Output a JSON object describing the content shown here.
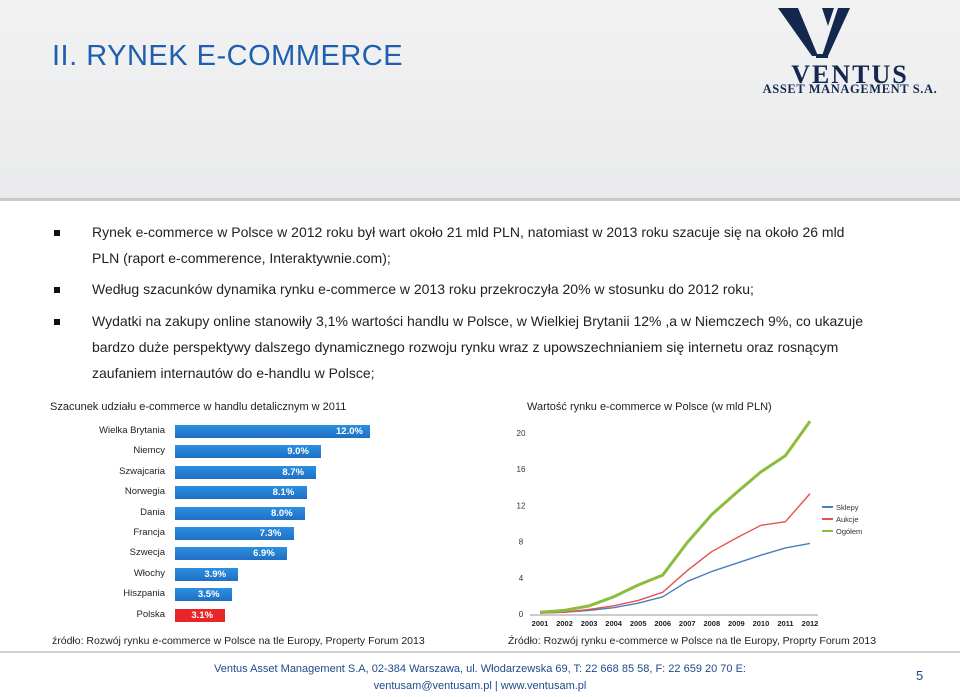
{
  "header": {
    "title": "II. RYNEK E-COMMERCE"
  },
  "logo": {
    "name": "VENTUS",
    "subtitle": "ASSET MANAGEMENT S.A."
  },
  "bullets": [
    {
      "lines": [
        "Rynek e-commerce w  Polsce w 2012 roku był wart około 21 mld PLN,  natomiast w 2013 roku szacuje się na około 26 mld",
        "PLN (raport e-commerence, Interaktywnie.com);"
      ]
    },
    {
      "lines": [
        "Według szacunków dynamika rynku  e-commerce w 2013 roku przekroczyła 20% w stosunku do 2012 roku;"
      ]
    },
    {
      "lines": [
        "Wydatki na zakupy online stanowiły 3,1% wartości handlu w Polsce, w Wielkiej Brytanii 12% ,a w Niemczech 9%, co ukazuje",
        "bardzo duże perspektywy dalszego dynamicznego rozwoju rynku wraz  z upowszechnianiem się internetu oraz rosnącym",
        "zaufaniem internautów do e-handlu w Polsce;"
      ]
    }
  ],
  "captions": {
    "left": "Szacunek udziału e-commerce w handlu detalicznym w 2011",
    "right": "Wartość rynku e-commerce w Polsce (w mld  PLN)",
    "left_source": "źródło: Rozwój rynku e-commerce w Polsce na tle Europy, Property Forum 2013",
    "right_source": "Źródło: Rozwój rynku e-commerce w Polsce na tle Europy, Proprty Forum 2013"
  },
  "chart_data": [
    {
      "type": "bar",
      "orientation": "horizontal",
      "title": "Szacunek udziału e-commerce w handlu detalicznym w 2011",
      "categories": [
        "Wielka Brytania",
        "Niemcy",
        "Szwajcaria",
        "Norwegia",
        "Dania",
        "Francja",
        "Szwecja",
        "Włochy",
        "Hiszpania",
        "Polska"
      ],
      "values": [
        12.0,
        9.0,
        8.7,
        8.1,
        8.0,
        7.3,
        6.9,
        3.9,
        3.5,
        3.1
      ],
      "value_labels": [
        "12.0%",
        "9.0%",
        "8.7%",
        "8.1%",
        "8.0%",
        "7.3%",
        "6.9%",
        "3.9%",
        "3.5%",
        "3.1%"
      ],
      "xlim": [
        0,
        12.0
      ],
      "bar_color": "#1f78d1",
      "highlight_color": "#e8262a"
    },
    {
      "type": "line",
      "title": "Wartość rynku e-commerce w Polsce (w mld  PLN)",
      "x": [
        "2001",
        "2002",
        "2003",
        "2004",
        "2005",
        "2006",
        "2007",
        "2008",
        "2009",
        "2010",
        "2011",
        "2012"
      ],
      "yticks": [
        "0",
        "4",
        "8",
        "12",
        "16",
        "20"
      ],
      "ylim": [
        0,
        20
      ],
      "series": [
        {
          "name": "Sklepy",
          "color": "#4a7ebb",
          "values": [
            0.1,
            0.2,
            0.4,
            0.7,
            1.2,
            1.9,
            3.6,
            4.7,
            5.6,
            6.5,
            7.3,
            7.8
          ]
        },
        {
          "name": "Aukcje",
          "color": "#e2534d",
          "values": [
            0.1,
            0.2,
            0.5,
            0.9,
            1.5,
            2.4,
            4.8,
            6.9,
            8.4,
            9.8,
            10.2,
            13.3
          ]
        },
        {
          "name": "Ogółem",
          "color": "#8cbc3c",
          "values": [
            0.2,
            0.4,
            0.9,
            1.9,
            3.2,
            4.3,
            7.9,
            11.0,
            13.4,
            15.7,
            17.5,
            21.3
          ]
        }
      ],
      "legend_position": "right"
    }
  ],
  "footer": {
    "line1": "Ventus Asset Management S.A, 02-384 Warszawa, ul. Włodarzewska 69, T: 22 668 85 58, F: 22 659 20 70 E:",
    "line2": "ventusam@ventusam.pl | www.ventusam.pl",
    "page": "5"
  }
}
